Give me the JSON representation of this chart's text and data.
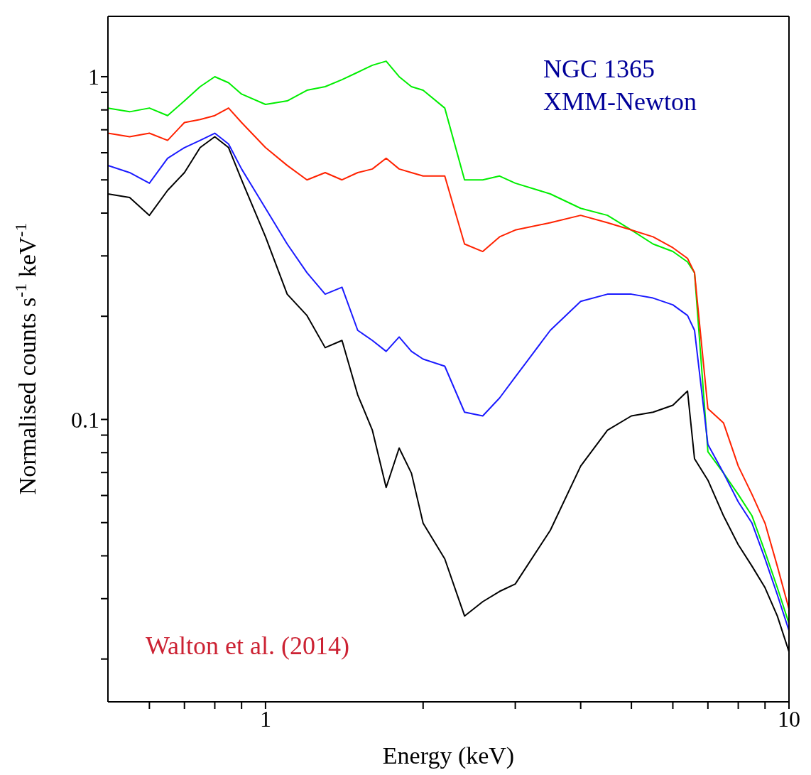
{
  "chart_data": {
    "type": "line",
    "xlabel": "Energy (keV)",
    "ylabel": "Normalised counts s$^{-1}$ keV$^{-1}$",
    "annotations": [
      "NGC 1365",
      "XMM-Newton",
      "Walton et al. (2014)"
    ],
    "log": "xy",
    "xlim": [
      0.5,
      10
    ],
    "ylim": [
      0.015,
      1.5
    ],
    "xticks": [
      {
        "value": 0.6,
        "label": null
      },
      {
        "value": 0.7,
        "label": null
      },
      {
        "value": 0.8,
        "label": null
      },
      {
        "value": 0.9,
        "label": null
      },
      1,
      {
        "value": 2,
        "label": null
      },
      {
        "value": 3,
        "label": null
      },
      {
        "value": 4,
        "label": null
      },
      {
        "value": 5,
        "label": null
      },
      {
        "value": 6,
        "label": null
      },
      {
        "value": 7,
        "label": null
      },
      {
        "value": 8,
        "label": null
      },
      {
        "value": 9,
        "label": null
      },
      10
    ],
    "yticks": [
      {
        "value": 0.02,
        "label": null
      },
      {
        "value": 0.03,
        "label": null
      },
      {
        "value": 0.04,
        "label": null
      },
      {
        "value": 0.05,
        "label": null
      },
      {
        "value": 0.06,
        "label": null
      },
      {
        "value": 0.07,
        "label": null
      },
      {
        "value": 0.08,
        "label": null
      },
      {
        "value": 0.09,
        "label": null
      },
      0.1,
      {
        "value": 0.2,
        "label": null
      },
      {
        "value": 0.3,
        "label": null
      },
      {
        "value": 0.4,
        "label": null
      },
      {
        "value": 0.5,
        "label": null
      },
      {
        "value": 0.6,
        "label": null
      },
      {
        "value": 0.7,
        "label": null
      },
      {
        "value": 0.8,
        "label": null
      },
      {
        "value": 0.9,
        "label": null
      },
      1
    ],
    "x": [
      0.5,
      0.55,
      0.6,
      0.65,
      0.7,
      0.75,
      0.8,
      0.85,
      0.9,
      1.0,
      1.1,
      1.2,
      1.3,
      1.4,
      1.5,
      1.6,
      1.7,
      1.8,
      1.9,
      2.0,
      2.2,
      2.4,
      2.6,
      2.8,
      3.0,
      3.5,
      4,
      4.5,
      5,
      5.5,
      6,
      6.4,
      6.6,
      7,
      7.5,
      8,
      8.5,
      9,
      9.5,
      10
    ],
    "series": [
      {
        "color": "#00ee00",
        "values": [
          0.81,
          0.79,
          0.81,
          0.77,
          0.85,
          0.935,
          1.0,
          0.96,
          0.89,
          0.83,
          0.85,
          0.913,
          0.935,
          0.98,
          1.03,
          1.08,
          1.11,
          1.0,
          0.935,
          0.913,
          0.81,
          0.5,
          0.5,
          0.513,
          0.489,
          0.455,
          0.413,
          0.394,
          0.357,
          0.325,
          0.309,
          0.288,
          0.268,
          0.0805,
          0.0697,
          0.0604,
          0.0523,
          0.0411,
          0.0323,
          0.0254
        ]
      },
      {
        "color": "#ff2200",
        "values": [
          0.684,
          0.668,
          0.684,
          0.652,
          0.735,
          0.75,
          0.77,
          0.81,
          0.735,
          0.621,
          0.551,
          0.5,
          0.525,
          0.5,
          0.525,
          0.538,
          0.578,
          0.538,
          0.525,
          0.513,
          0.513,
          0.325,
          0.309,
          0.341,
          0.357,
          0.375,
          0.394,
          0.375,
          0.357,
          0.341,
          0.317,
          0.295,
          0.268,
          0.1075,
          0.0976,
          0.0731,
          0.0604,
          0.0498,
          0.0373,
          0.028
        ]
      },
      {
        "color": "#1a1aff",
        "values": [
          0.551,
          0.525,
          0.489,
          0.578,
          0.621,
          0.652,
          0.684,
          0.636,
          0.538,
          0.413,
          0.325,
          0.268,
          0.232,
          0.243,
          0.182,
          0.17,
          0.158,
          0.174,
          0.158,
          0.15,
          0.143,
          0.105,
          0.1024,
          0.1155,
          0.133,
          0.182,
          0.221,
          0.232,
          0.232,
          0.226,
          0.216,
          0.201,
          0.182,
          0.0845,
          0.0697,
          0.0575,
          0.0498,
          0.0392,
          0.0308,
          0.0242
        ]
      },
      {
        "color": "#000000",
        "values": [
          0.455,
          0.444,
          0.394,
          0.466,
          0.525,
          0.621,
          0.668,
          0.621,
          0.5,
          0.341,
          0.232,
          0.201,
          0.162,
          0.17,
          0.118,
          0.093,
          0.0633,
          0.0825,
          0.0697,
          0.0498,
          0.0392,
          0.0267,
          0.0294,
          0.0315,
          0.0331,
          0.0475,
          0.0731,
          0.093,
          0.1024,
          0.105,
          0.11,
          0.121,
          0.0768,
          0.0665,
          0.0523,
          0.0431,
          0.0373,
          0.0323,
          0.0267,
          0.021
        ]
      }
    ]
  }
}
